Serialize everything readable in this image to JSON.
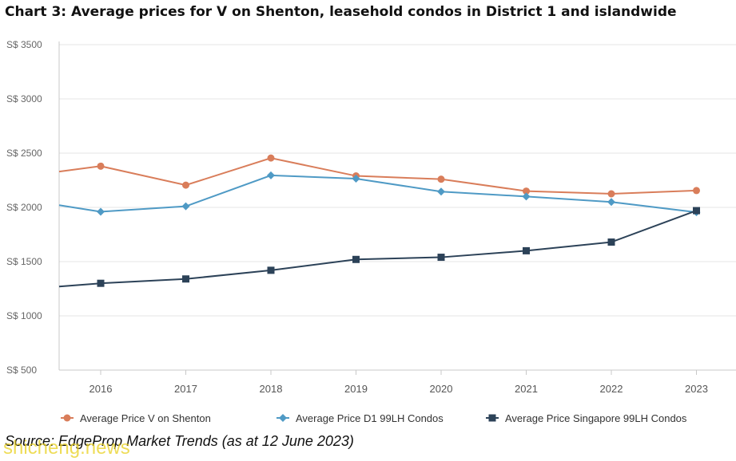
{
  "title": "Chart 3: Average prices for V on Shenton, leasehold condos in District 1 and islandwide",
  "source": "Source: EdgeProp Market Trends (as at 12 June 2023)",
  "watermark": "shicheng.news",
  "colors": {
    "series_orange": "#d97d5a",
    "series_blue": "#4f9ac5",
    "series_navy": "#2c4258",
    "grid": "#e6e6e6",
    "axis_text": "#666666"
  },
  "chart_data": {
    "type": "line",
    "categories": [
      "2016",
      "2017",
      "2018",
      "2019",
      "2020",
      "2021",
      "2022",
      "2023"
    ],
    "y_tick_labels": [
      "S$ 500",
      "S$ 1000",
      "S$ 1500",
      "S$ 2000",
      "S$ 2500",
      "S$ 3000",
      "S$ 3500"
    ],
    "y_ticks": [
      500,
      1000,
      1500,
      2000,
      2500,
      3000,
      3500
    ],
    "ylim": [
      500,
      3500
    ],
    "grid": true,
    "legend_position": "bottom",
    "series": [
      {
        "name": "Average Price V on Shenton",
        "marker": "circle",
        "color": "#d97d5a",
        "line_start_value": 2330,
        "values": [
          2380,
          2205,
          2455,
          2290,
          2260,
          2150,
          2125,
          2155
        ]
      },
      {
        "name": "Average Price D1 99LH Condos",
        "marker": "diamond",
        "color": "#4f9ac5",
        "line_start_value": 2020,
        "values": [
          1960,
          2010,
          2295,
          2265,
          2145,
          2100,
          2050,
          1955
        ]
      },
      {
        "name": "Average Price Singapore 99LH Condos",
        "marker": "square",
        "color": "#2c4258",
        "line_start_value": 1270,
        "values": [
          1300,
          1340,
          1420,
          1520,
          1540,
          1600,
          1680,
          1970
        ]
      }
    ]
  }
}
